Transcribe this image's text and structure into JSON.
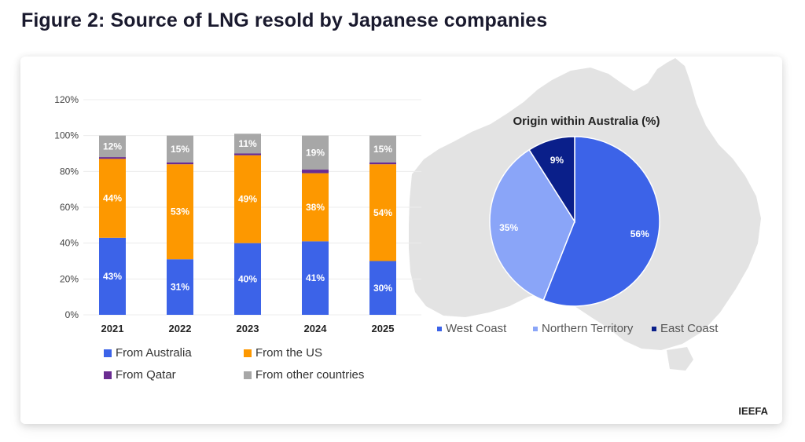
{
  "title": "Figure 2: Source of LNG resold by Japanese companies",
  "brand": "IEEFA",
  "colors": {
    "australia": "#3c63e8",
    "us": "#fd9800",
    "qatar": "#6a2c91",
    "other": "#a7a7a7",
    "west_coast": "#3c63e8",
    "northern_territory": "#8aa5f8",
    "east_coast": "#0a1f8a",
    "map": "#e3e3e3"
  },
  "chart_data": [
    {
      "type": "bar",
      "stacked": true,
      "categories": [
        "2021",
        "2022",
        "2023",
        "2024",
        "2025"
      ],
      "yticks": [
        "0%",
        "20%",
        "40%",
        "60%",
        "80%",
        "100%",
        "120%"
      ],
      "ylim": [
        0,
        120
      ],
      "grid": true,
      "legend_position": "bottom",
      "series": [
        {
          "name": "From Australia",
          "key": "australia",
          "values": [
            43,
            31,
            40,
            41,
            30
          ],
          "labels": [
            "43%",
            "31%",
            "40%",
            "41%",
            "30%"
          ]
        },
        {
          "name": "From the US",
          "key": "us",
          "values": [
            44,
            53,
            49,
            38,
            54
          ],
          "labels": [
            "44%",
            "53%",
            "49%",
            "38%",
            "54%"
          ]
        },
        {
          "name": "From Qatar",
          "key": "qatar",
          "values": [
            1,
            1,
            1,
            2,
            1
          ],
          "labels": [
            "",
            "",
            "",
            "",
            ""
          ]
        },
        {
          "name": "From other countries",
          "key": "other",
          "values": [
            12,
            15,
            11,
            19,
            15
          ],
          "labels": [
            "12%",
            "15%",
            "11%",
            "19%",
            "15%"
          ]
        }
      ]
    },
    {
      "type": "pie",
      "title": "Origin within Australia (%)",
      "legend_position": "bottom",
      "slices": [
        {
          "name": "West Coast",
          "key": "west_coast",
          "value": 56,
          "label": "56%"
        },
        {
          "name": "Northern Territory",
          "key": "northern_territory",
          "value": 35,
          "label": "35%"
        },
        {
          "name": "East Coast",
          "key": "east_coast",
          "value": 9,
          "label": "9%"
        }
      ]
    }
  ]
}
